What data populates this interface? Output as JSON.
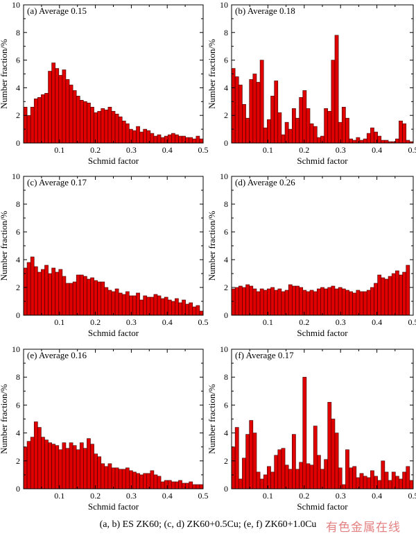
{
  "caption": "(a, b) ES  ZK60; (c, d) ZK60+0.5Cu; (e, f) ZK60+1.0Cu",
  "watermark": "有色金属在线",
  "colors": {
    "bar": "#e00000",
    "bar_edge": "#3a0000",
    "axis": "#000000"
  },
  "chart_data": [
    {
      "type": "bar",
      "panel": "(a)",
      "title": "(a)  Average 0.15",
      "xlabel": "Schmid factor",
      "ylabel": "Number fraction/%",
      "xlim": [
        0,
        0.5
      ],
      "ylim": [
        0,
        10
      ],
      "xticks": [
        "0.1",
        "0.2",
        "0.3",
        "0.4",
        "0.5"
      ],
      "yticks": [
        "0",
        "2",
        "4",
        "6",
        "8",
        "10"
      ],
      "values": [
        2.6,
        2.0,
        2.6,
        3.2,
        3.3,
        3.5,
        3.6,
        5.2,
        5.8,
        5.4,
        4.9,
        5.3,
        4.6,
        4.2,
        3.8,
        3.4,
        3.1,
        3.0,
        2.9,
        2.6,
        2.2,
        2.3,
        2.5,
        2.4,
        2.6,
        2.3,
        2.1,
        1.9,
        1.6,
        1.4,
        1.0,
        0.9,
        1.2,
        0.8,
        1.0,
        0.9,
        0.7,
        0.5,
        0.6,
        0.4,
        0.5,
        0.6,
        0.7,
        0.6,
        0.5,
        0.5,
        0.4,
        0.4,
        0.3,
        0.5,
        0.3
      ]
    },
    {
      "type": "bar",
      "panel": "(b)",
      "title": "(b)  Average 0.18",
      "xlabel": "Schmid factor",
      "ylabel": "Number fraction/%",
      "xlim": [
        0,
        0.5
      ],
      "ylim": [
        0,
        10
      ],
      "xticks": [
        "0.1",
        "0.2",
        "0.3",
        "0.4",
        "0.5"
      ],
      "yticks": [
        "0",
        "2",
        "4",
        "6",
        "8",
        "10"
      ],
      "values": [
        5.4,
        4.8,
        4.2,
        2.8,
        1.8,
        4.6,
        5.0,
        4.4,
        6.0,
        1.1,
        1.7,
        3.4,
        4.5,
        2.2,
        0.6,
        1.5,
        1.0,
        2.5,
        1.8,
        3.3,
        3.8,
        2.5,
        1.4,
        1.2,
        0.4,
        0.5,
        2.5,
        2.3,
        6.0,
        7.8,
        1.5,
        2.6,
        1.8,
        0.3,
        0.2,
        0.4,
        0.2,
        0.3,
        0.7,
        1.1,
        0.8,
        0.5,
        0.2,
        0.2,
        0.1,
        0.1,
        0.3,
        1.6,
        1.4,
        0.2,
        0.1
      ]
    },
    {
      "type": "bar",
      "panel": "(c)",
      "title": "(c)  Average 0.17",
      "xlabel": "Schmid factor",
      "ylabel": "Number fraction/%",
      "xlim": [
        0,
        0.5
      ],
      "ylim": [
        0,
        10
      ],
      "xticks": [
        "0.1",
        "0.2",
        "0.3",
        "0.4",
        "0.5"
      ],
      "yticks": [
        "0",
        "2",
        "4",
        "6",
        "8",
        "10"
      ],
      "values": [
        3.4,
        3.8,
        4.2,
        3.5,
        3.1,
        3.3,
        3.6,
        3.0,
        3.4,
        3.1,
        3.3,
        2.8,
        2.3,
        2.3,
        2.4,
        2.9,
        2.9,
        2.8,
        2.6,
        2.7,
        2.5,
        2.4,
        2.4,
        2.0,
        1.8,
        1.7,
        1.9,
        1.6,
        1.5,
        1.7,
        1.4,
        1.4,
        1.6,
        1.1,
        1.4,
        1.3,
        1.3,
        1.5,
        1.4,
        1.2,
        1.3,
        1.1,
        1.0,
        1.2,
        0.9,
        1.1,
        0.8,
        0.9,
        0.6,
        0.7,
        0.3
      ]
    },
    {
      "type": "bar",
      "panel": "(d)",
      "title": "(d)  Average 0.26",
      "xlabel": "Schmid factor",
      "ylabel": "Number fraction/%",
      "xlim": [
        0,
        0.5
      ],
      "ylim": [
        0,
        10
      ],
      "xticks": [
        "0.1",
        "0.2",
        "0.3",
        "0.4",
        "0.5"
      ],
      "yticks": [
        "0",
        "2",
        "4",
        "6",
        "8",
        "10"
      ],
      "values": [
        1.9,
        2.0,
        2.1,
        2.0,
        2.2,
        2.1,
        1.9,
        1.7,
        1.9,
        1.8,
        1.9,
        2.0,
        1.8,
        1.9,
        1.7,
        1.8,
        2.2,
        2.1,
        2.1,
        2.0,
        1.8,
        1.7,
        1.8,
        1.7,
        1.9,
        2.0,
        1.9,
        2.0,
        2.1,
        1.9,
        2.0,
        1.9,
        1.8,
        1.7,
        1.6,
        1.8,
        1.7,
        1.7,
        1.8,
        2.0,
        2.3,
        2.9,
        2.7,
        2.6,
        2.8,
        3.0,
        3.2,
        2.9,
        3.1,
        3.6,
        0.0
      ]
    },
    {
      "type": "bar",
      "panel": "(e)",
      "title": "(e)  Average 0.16",
      "xlabel": "Schmid factor",
      "ylabel": "Number fraction/%",
      "xlim": [
        0,
        0.5
      ],
      "ylim": [
        0,
        10
      ],
      "xticks": [
        "0.1",
        "0.2",
        "0.3",
        "0.4",
        "0.5"
      ],
      "yticks": [
        "0",
        "2",
        "4",
        "6",
        "8",
        "10"
      ],
      "values": [
        3.0,
        3.4,
        3.7,
        4.8,
        4.4,
        3.7,
        3.5,
        3.3,
        3.2,
        3.1,
        2.8,
        3.3,
        2.9,
        3.3,
        3.1,
        2.8,
        3.3,
        2.9,
        3.6,
        3.2,
        2.5,
        2.3,
        1.8,
        1.6,
        1.8,
        1.5,
        1.5,
        1.4,
        1.4,
        1.5,
        1.3,
        1.2,
        1.1,
        1.0,
        1.1,
        1.1,
        1.3,
        1.0,
        0.9,
        0.5,
        0.6,
        0.6,
        0.5,
        0.5,
        0.6,
        0.4,
        0.4,
        0.5,
        0.3,
        0.3,
        0.3
      ]
    },
    {
      "type": "bar",
      "panel": "(f)",
      "title": "(f)  Average 0.17",
      "xlabel": "Schmid factor",
      "ylabel": "Number fraction/%",
      "xlim": [
        0,
        0.5
      ],
      "ylim": [
        0,
        10
      ],
      "xticks": [
        "0.1",
        "0.2",
        "0.3",
        "0.4",
        "0.5"
      ],
      "yticks": [
        "0",
        "2",
        "4",
        "6",
        "8",
        "10"
      ],
      "values": [
        3.0,
        4.4,
        0.7,
        2.2,
        3.9,
        4.9,
        4.0,
        1.2,
        0.7,
        1.0,
        1.6,
        1.2,
        2.4,
        2.8,
        2.9,
        1.7,
        1.4,
        3.9,
        1.4,
        1.9,
        8.0,
        1.8,
        1.7,
        4.5,
        2.4,
        1.4,
        2.1,
        6.2,
        5.0,
        4.0,
        1.5,
        0.3,
        2.8,
        1.5,
        1.6,
        0.8,
        1.1,
        0.9,
        0.8,
        1.3,
        0.9,
        0.6,
        2.0,
        1.2,
        0.6,
        1.2,
        0.9,
        0.7,
        1.2,
        1.6,
        0.6
      ]
    }
  ]
}
